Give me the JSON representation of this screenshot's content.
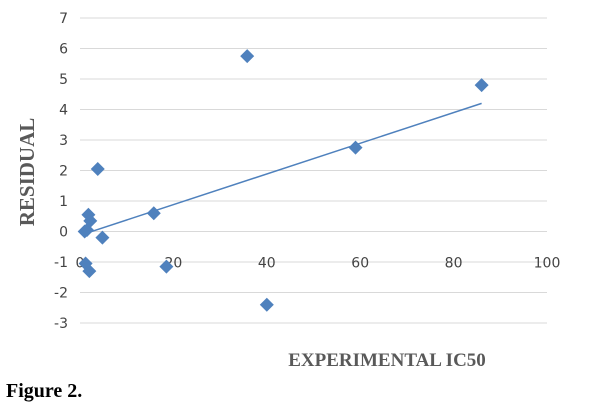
{
  "chart_data": {
    "type": "scatter",
    "title": "",
    "xlabel": "EXPERIMENTAL IC50",
    "ylabel": "RESIDUAL",
    "xlim": [
      0,
      100
    ],
    "ylim": [
      -3,
      7
    ],
    "x_ticks": [
      "0",
      "20",
      "40",
      "60",
      "80",
      "100"
    ],
    "y_ticks": [
      "-3",
      "-2",
      "-1",
      "0",
      "1",
      "2",
      "3",
      "4",
      "5",
      "6",
      "7"
    ],
    "grid": "horizontal",
    "legend": "none",
    "marker": "diamond",
    "series": [
      {
        "points": [
          {
            "x": 1.0,
            "y": 0.0
          },
          {
            "x": 1.5,
            "y": 0.05
          },
          {
            "x": 1.8,
            "y": 0.55
          },
          {
            "x": 2.2,
            "y": 0.35
          },
          {
            "x": 1.2,
            "y": -1.05
          },
          {
            "x": 2.0,
            "y": -1.3
          },
          {
            "x": 3.8,
            "y": 2.05
          },
          {
            "x": 4.8,
            "y": -0.2
          },
          {
            "x": 15.8,
            "y": 0.6
          },
          {
            "x": 18.5,
            "y": -1.15
          },
          {
            "x": 35.8,
            "y": 5.75
          },
          {
            "x": 40.0,
            "y": -2.4
          },
          {
            "x": 59.0,
            "y": 2.75
          },
          {
            "x": 86.0,
            "y": 4.8
          }
        ]
      }
    ],
    "trendline": {
      "type": "linear",
      "from": {
        "x": 0.5,
        "y": -0.1
      },
      "to": {
        "x": 86.0,
        "y": 4.2
      }
    },
    "colors": {
      "marker": "#4f81bd",
      "trendline": "#4f81bd",
      "grid": "#d9d9d9"
    }
  },
  "caption": "Figure 2."
}
